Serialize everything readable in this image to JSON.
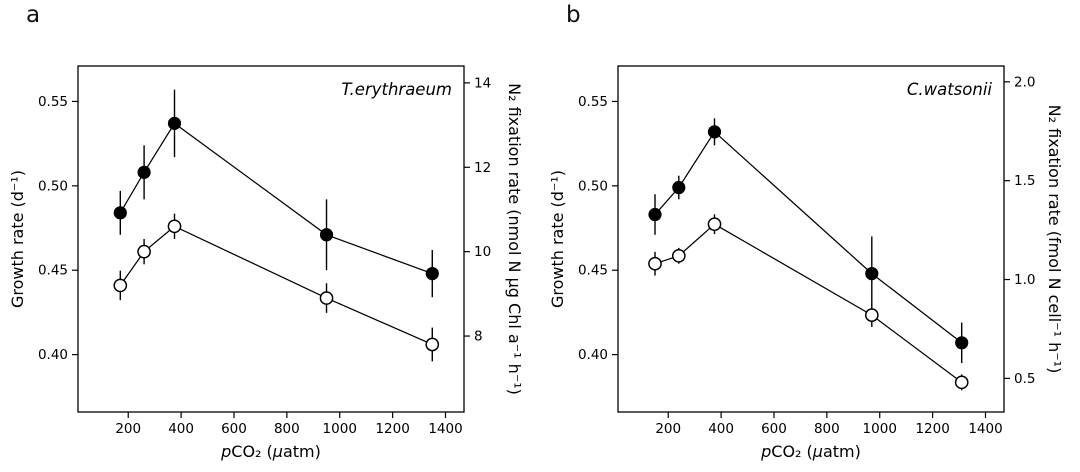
{
  "figure": {
    "background_color": "#ffffff",
    "line_color": "#000000",
    "panels": [
      {
        "letter": "a"
      },
      {
        "letter": "b"
      }
    ]
  },
  "chart_data": [
    {
      "type": "line",
      "panel_letter": "a",
      "species_label": "T.erythraeum",
      "xlabel": "pCO₂ (µatm)",
      "xlabel_parts": [
        {
          "text": "p",
          "italic": true
        },
        {
          "text": "CO₂ (",
          "italic": false
        },
        {
          "text": "µ",
          "italic": true
        },
        {
          "text": "atm)",
          "italic": false
        }
      ],
      "ylabel_left": "Growth rate (d⁻¹)",
      "ylabel_right": "N₂ fixation rate (nmol N µg Chl a⁻¹ h⁻¹)",
      "xlim": [
        10,
        1470
      ],
      "x_ticks": [
        200,
        400,
        600,
        800,
        1000,
        1200,
        1400
      ],
      "ylim_left": [
        0.366,
        0.571
      ],
      "y_ticks_left": [
        0.4,
        0.45,
        0.5,
        0.55
      ],
      "ylim_right": [
        6.2,
        14.4
      ],
      "y_ticks_right": [
        8,
        10,
        12,
        14
      ],
      "tick_decimals": {
        "x": 0,
        "left": 2,
        "right": 0
      },
      "grid": false,
      "legend": "none",
      "series": [
        {
          "name": "growth-rate",
          "marker": "filled-circle",
          "axis": "left",
          "x": [
            170,
            260,
            375,
            950,
            1350
          ],
          "y": [
            0.484,
            0.508,
            0.537,
            0.471,
            0.448
          ],
          "yerr": [
            0.013,
            0.016,
            0.02,
            0.021,
            0.014
          ]
        },
        {
          "name": "n2-fixation-rate",
          "marker": "open-circle",
          "axis": "right",
          "x": [
            170,
            260,
            375,
            950,
            1350
          ],
          "y": [
            9.2,
            10.0,
            10.6,
            8.9,
            7.8
          ],
          "yerr": [
            0.35,
            0.3,
            0.3,
            0.35,
            0.4
          ]
        }
      ]
    },
    {
      "type": "line",
      "panel_letter": "b",
      "species_label": "C.watsonii",
      "xlabel": "pCO₂ (µatm)",
      "xlabel_parts": [
        {
          "text": "p",
          "italic": true
        },
        {
          "text": "CO₂ (",
          "italic": false
        },
        {
          "text": "µ",
          "italic": true
        },
        {
          "text": "atm)",
          "italic": false
        }
      ],
      "ylabel_left": "Growth rate (d⁻¹)",
      "ylabel_right": "N₂ fixation rate (fmol N cell⁻¹ h⁻¹)",
      "xlim": [
        10,
        1470
      ],
      "x_ticks": [
        200,
        400,
        600,
        800,
        1000,
        1200,
        1400
      ],
      "ylim_left": [
        0.366,
        0.571
      ],
      "y_ticks_left": [
        0.4,
        0.45,
        0.5,
        0.55
      ],
      "ylim_right": [
        0.33,
        2.08
      ],
      "y_ticks_right": [
        0.5,
        1.0,
        1.5,
        2.0
      ],
      "tick_decimals": {
        "x": 0,
        "left": 2,
        "right": 1
      },
      "grid": false,
      "legend": "none",
      "series": [
        {
          "name": "growth-rate",
          "marker": "filled-circle",
          "axis": "left",
          "x": [
            150,
            240,
            375,
            970,
            1310
          ],
          "y": [
            0.483,
            0.499,
            0.532,
            0.448,
            0.407
          ],
          "yerr": [
            0.012,
            0.007,
            0.008,
            0.022,
            0.012
          ]
        },
        {
          "name": "n2-fixation-rate",
          "marker": "open-circle",
          "axis": "right",
          "x": [
            150,
            240,
            375,
            970,
            1310
          ],
          "y": [
            1.08,
            1.12,
            1.28,
            0.82,
            0.48
          ],
          "yerr": [
            0.06,
            0.04,
            0.05,
            0.06,
            0.04
          ]
        }
      ]
    }
  ]
}
